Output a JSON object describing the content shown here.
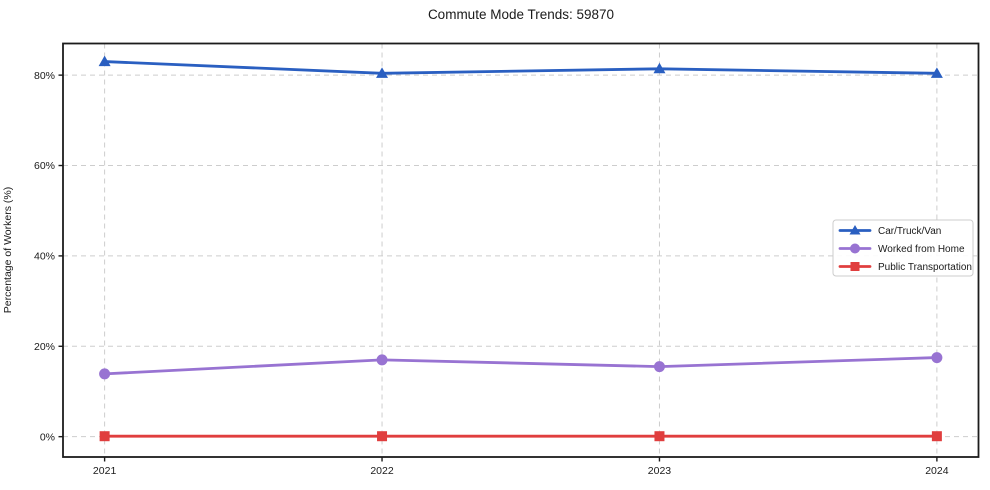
{
  "chart_data": {
    "type": "line",
    "title": "Commute Mode Trends: 59870",
    "xlabel": "",
    "ylabel": "Percentage of Workers (%)",
    "categories": [
      "2021",
      "2022",
      "2023",
      "2024"
    ],
    "series": [
      {
        "name": "Car/Truck/Van",
        "color": "#2a5fc1",
        "marker": "triangle",
        "values": [
          83.0,
          80.4,
          81.4,
          80.4
        ]
      },
      {
        "name": "Worked from Home",
        "color": "#9873d2",
        "marker": "circle",
        "values": [
          13.9,
          17.0,
          15.5,
          17.5
        ]
      },
      {
        "name": "Public Transportation",
        "color": "#e03e3e",
        "marker": "square",
        "values": [
          0.1,
          0.1,
          0.1,
          0.1
        ]
      }
    ],
    "y_tick_labels": [
      "0%",
      "20%",
      "40%",
      "60%",
      "80%"
    ],
    "y_tick_values": [
      0,
      20,
      40,
      60,
      80
    ],
    "ylim": [
      -4.5,
      87
    ],
    "grid": "dashed",
    "legend_position": "right-center",
    "colors": {
      "grid": "#cdcdcd",
      "spine": "#1c1c1c",
      "tick_text": "#1a1a1a",
      "legend_border": "#cccccc",
      "background": "#ffffff"
    }
  }
}
